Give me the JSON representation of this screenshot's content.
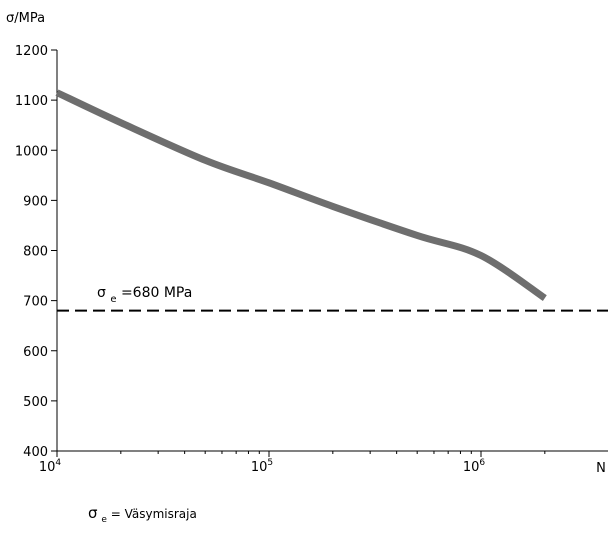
{
  "chart_data": {
    "type": "line",
    "ylabel": "σ/MPa",
    "xlabel": "N",
    "x_scale": "log",
    "xlim": [
      10000,
      2000000
    ],
    "ylim": [
      400,
      1200
    ],
    "grid": false,
    "legend": "none",
    "yticks": [
      400,
      500,
      600,
      700,
      800,
      900,
      1000,
      1100,
      1200
    ],
    "xticks": [
      {
        "value": 10000,
        "base": "10",
        "exp": "4"
      },
      {
        "value": 100000,
        "base": "10",
        "exp": "5"
      },
      {
        "value": 1000000,
        "base": "10",
        "exp": "6"
      }
    ],
    "series": [
      {
        "color": "#6e6e6e",
        "x": [
          10000,
          20000,
          50000,
          100000,
          200000,
          500000,
          1000000,
          2000000
        ],
        "y": [
          1115,
          1055,
          980,
          935,
          888,
          830,
          790,
          705
        ]
      }
    ],
    "reference_line": {
      "y": 680,
      "style": "dashed",
      "color": "#000000",
      "label_sym": "σ",
      "label_sub": "e",
      "label_rest": "=680 MPa"
    },
    "footnote": {
      "sym": "σ",
      "sub": "e",
      "rest": "= Väsymisraja"
    }
  }
}
